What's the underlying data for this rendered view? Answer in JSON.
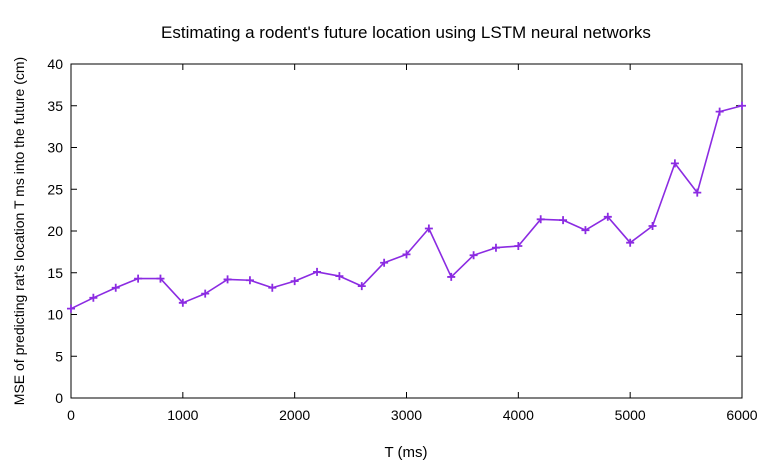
{
  "chart_data": {
    "type": "line",
    "title": "Estimating a rodent's future location using LSTM neural networks",
    "xlabel": "T (ms)",
    "ylabel": "MSE of predicting rat's location T ms into the future (cm)",
    "xlim": [
      0,
      6000
    ],
    "ylim": [
      0,
      40
    ],
    "xticks": [
      0,
      1000,
      2000,
      3000,
      4000,
      5000,
      6000
    ],
    "yticks": [
      0,
      5,
      10,
      15,
      20,
      25,
      30,
      35,
      40
    ],
    "grid": false,
    "marker": "plus",
    "line_color": "#8b2be2",
    "series": [
      {
        "x": [
          0,
          200,
          400,
          600,
          800,
          1000,
          1200,
          1400,
          1600,
          1800,
          2000,
          2200,
          2400,
          2600,
          2800,
          3000,
          3200,
          3400,
          3600,
          3800,
          4000,
          4200,
          4400,
          4600,
          4800,
          5000,
          5200,
          5400,
          5600,
          5800,
          6000
        ],
        "values": [
          10.7,
          12.0,
          13.2,
          14.3,
          14.3,
          11.4,
          12.5,
          14.2,
          14.1,
          13.2,
          14.0,
          15.1,
          14.6,
          13.4,
          16.2,
          17.2,
          20.3,
          14.5,
          17.1,
          18.0,
          18.2,
          21.4,
          21.3,
          20.1,
          21.7,
          18.6,
          20.6,
          28.1,
          24.6,
          34.3,
          35.0
        ]
      }
    ]
  }
}
